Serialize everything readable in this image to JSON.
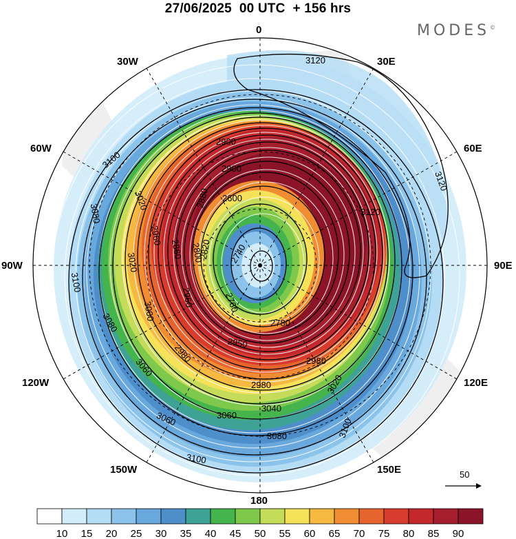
{
  "title": "27/06/2025  00 UTC  + 156 hrs",
  "brand": "MODES",
  "brand_mark": "©",
  "longitude_labels": {
    "n0": "0",
    "n30e": "30E",
    "n60e": "60E",
    "n90e": "90E",
    "n120e": "120E",
    "n150e": "150E",
    "n180": "180",
    "n150w": "150W",
    "n120w": "120W",
    "n90w": "90W",
    "n60w": "60W",
    "n30w": "30W"
  },
  "contour_labels": [
    "3120",
    "3120",
    "3120",
    "3100",
    "3100",
    "3100",
    "3100",
    "3080",
    "3080",
    "3080",
    "3060",
    "3060",
    "3060",
    "3040",
    "3020",
    "3020",
    "3020",
    "3000",
    "2980",
    "2980",
    "2980",
    "2960",
    "2960",
    "2950",
    "2900",
    "2900",
    "2880",
    "2860",
    "2820",
    "2800",
    "2780",
    "2760",
    "2740",
    "2600"
  ],
  "wind_reference": {
    "label": "50"
  },
  "colorbar": {
    "labels": [
      "10",
      "15",
      "20",
      "25",
      "30",
      "35",
      "40",
      "45",
      "50",
      "55",
      "60",
      "65",
      "70",
      "75",
      "80",
      "85",
      "90"
    ],
    "colors": [
      "#ffffff",
      "#d2ecfa",
      "#b4dcf4",
      "#8cc3ea",
      "#69a8dc",
      "#4e8fcb",
      "#3ea296",
      "#46b44c",
      "#7ec84c",
      "#c4dc5a",
      "#f5e15a",
      "#f5b941",
      "#f08c32",
      "#e6642d",
      "#d73c2d",
      "#c3282d",
      "#a51e2d",
      "#8c1428"
    ]
  }
}
